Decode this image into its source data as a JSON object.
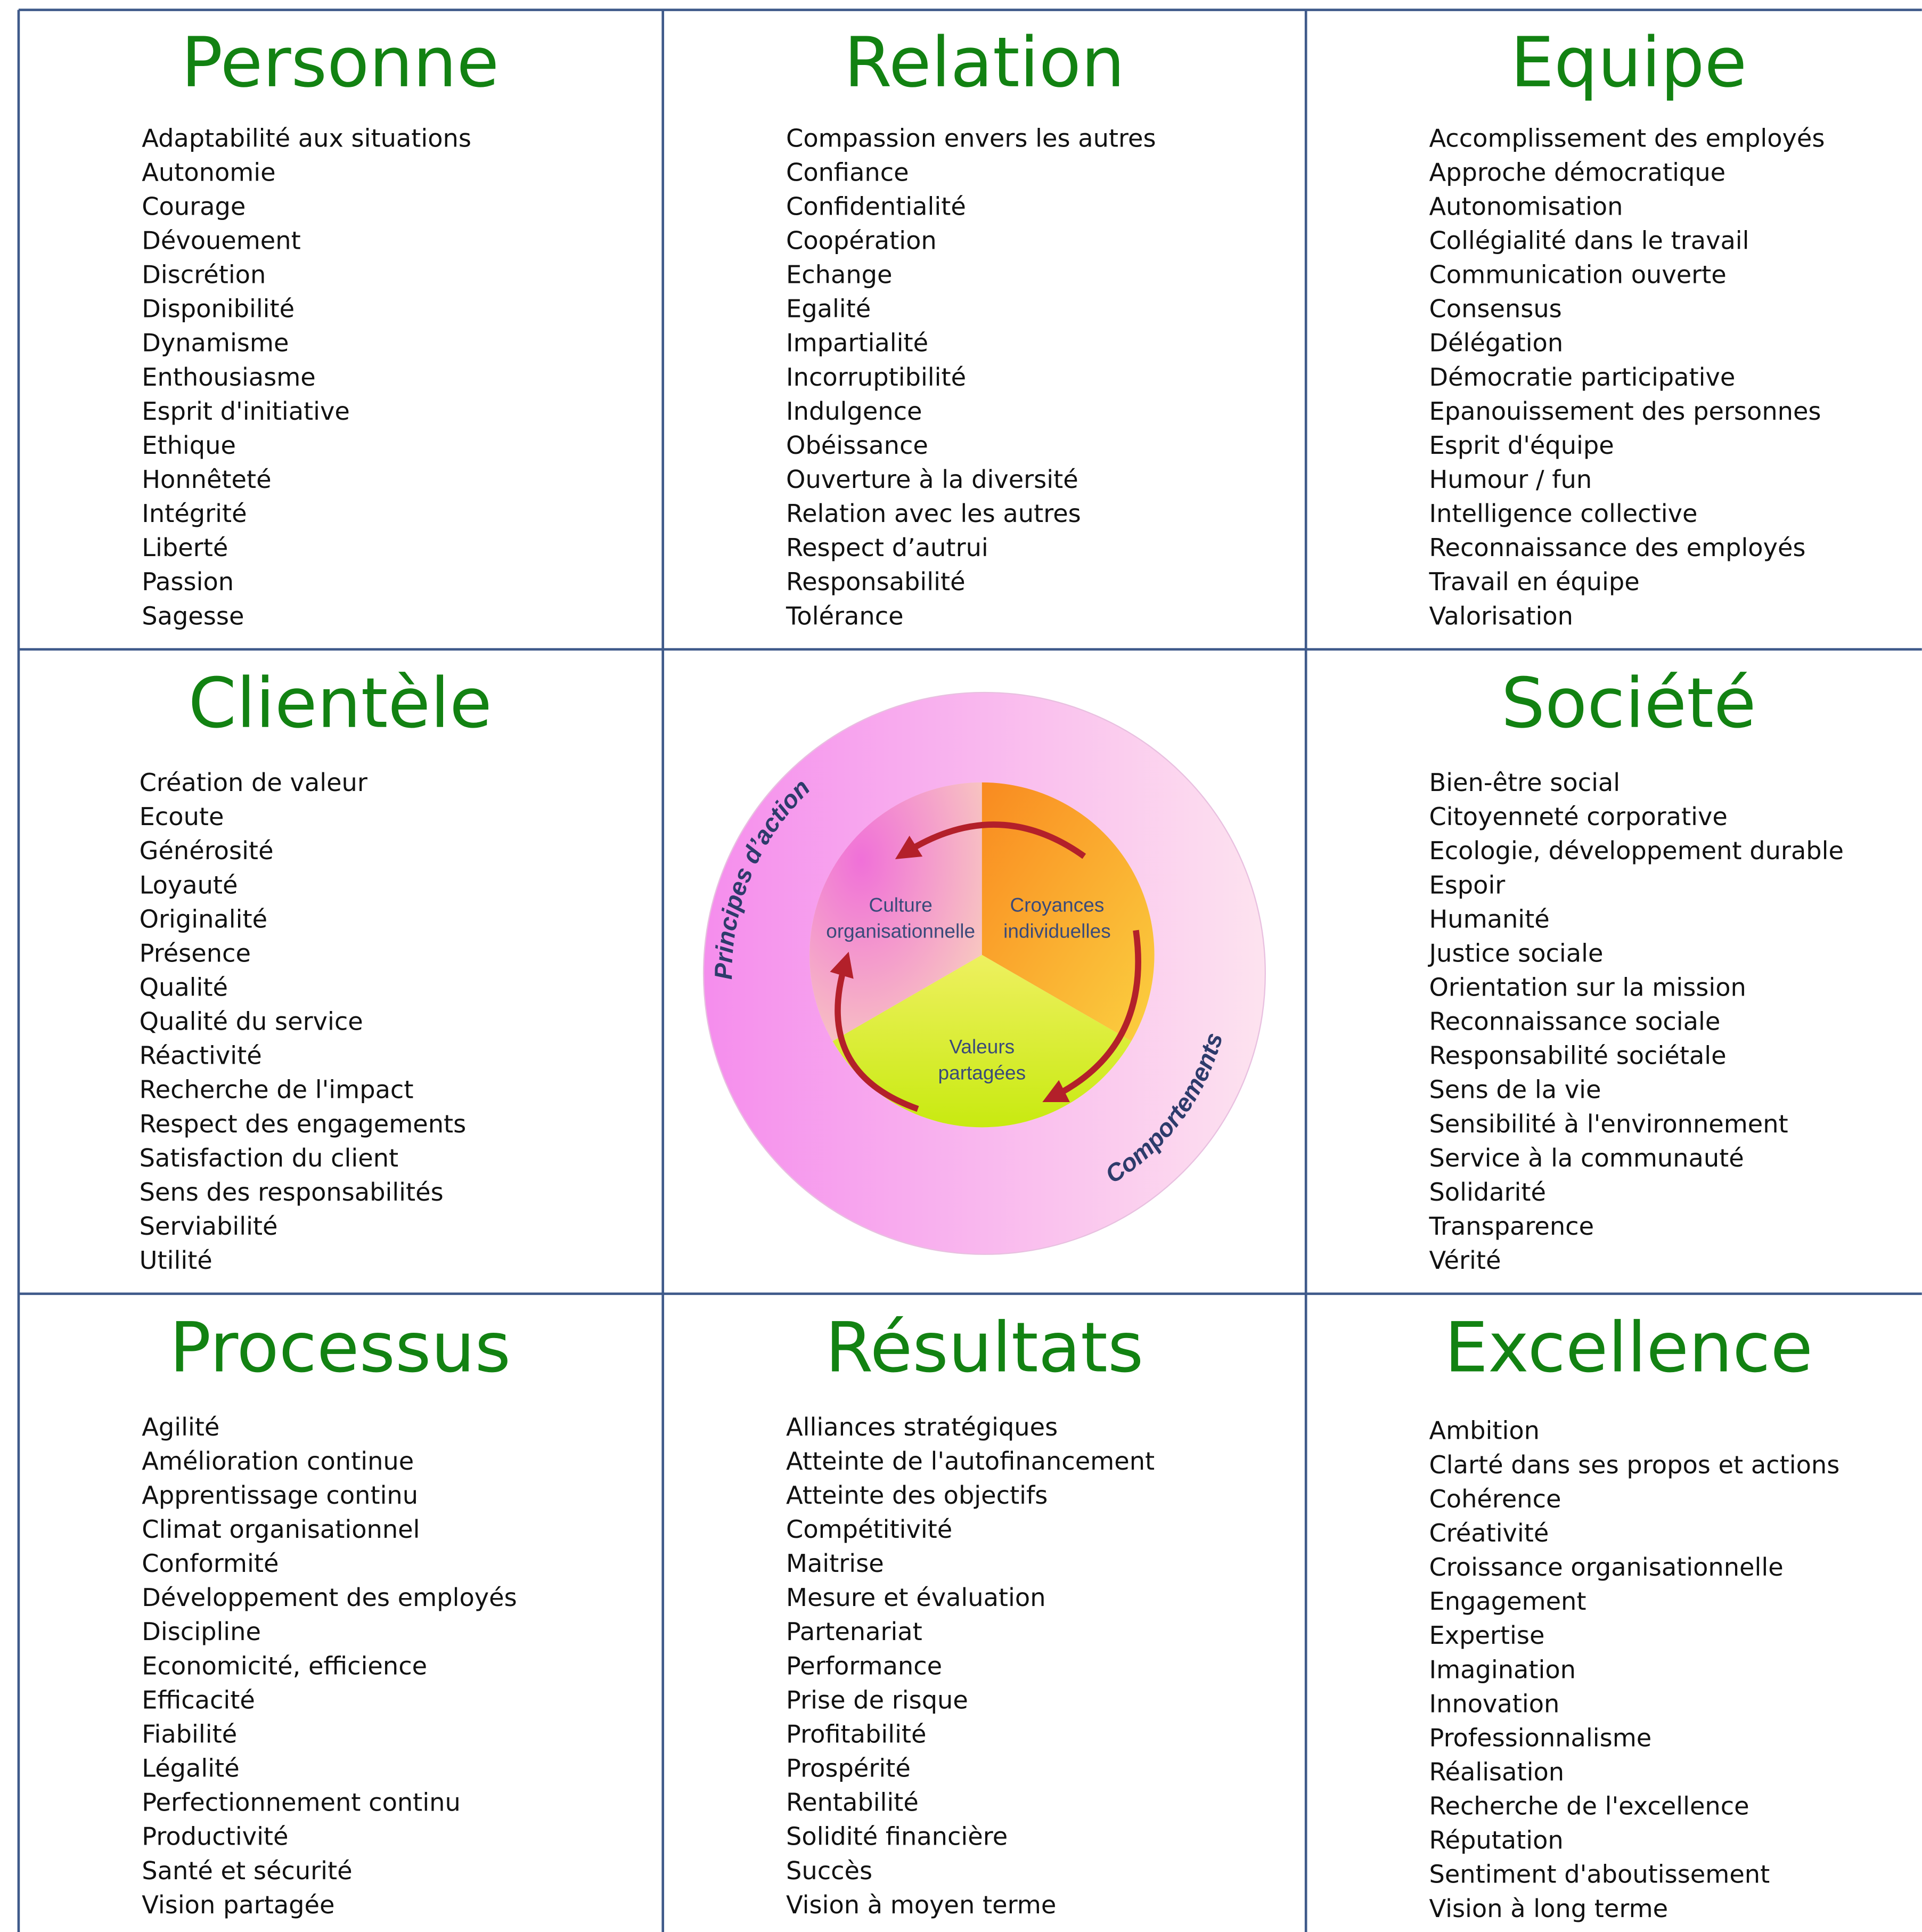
{
  "cells": [
    {
      "title": "Personne",
      "items": [
        "Adaptabilité aux situations",
        "Autonomie",
        "Courage",
        "Dévouement",
        "Discrétion",
        "Disponibilité",
        "Dynamisme",
        "Enthousiasme",
        "Esprit d'initiative",
        "Ethique",
        "Honnêteté",
        "Intégrité",
        "Liberté",
        "Passion",
        "Sagesse"
      ]
    },
    {
      "title": "Relation",
      "items": [
        "Compassion envers les autres",
        "Confiance",
        "Confidentialité",
        "Coopération",
        "Echange",
        "Egalité",
        "Impartialité",
        "Incorruptibilité",
        "Indulgence",
        "Obéissance",
        "Ouverture à la diversité",
        "Relation avec les autres",
        "Respect d’autrui",
        "Responsabilité",
        "Tolérance"
      ]
    },
    {
      "title": "Equipe",
      "items": [
        "Accomplissement des employés",
        "Approche démocratique",
        "Autonomisation",
        "Collégialité dans le travail",
        "Communication ouverte",
        "Consensus",
        "Délégation",
        "Démocratie participative",
        "Epanouissement des personnes",
        "Esprit d'équipe",
        "Humour / fun",
        "Intelligence collective",
        "Reconnaissance des employés",
        "Travail en équipe",
        "Valorisation"
      ]
    },
    {
      "title": "Clientèle",
      "items": [
        "Création de valeur",
        "Ecoute",
        "Générosité",
        "Loyauté",
        "Originalité",
        "Présence",
        "Qualité",
        "Qualité du service",
        "Réactivité",
        "Recherche de l'impact",
        "Respect des engagements",
        "Satisfaction du client",
        "Sens des responsabilités",
        "Serviabilité",
        "Utilité"
      ]
    },
    {
      "title": "Société",
      "items": [
        "Bien-être social",
        "Citoyenneté corporative",
        "Ecologie, développement durable",
        "Espoir",
        "Humanité",
        "Justice sociale",
        "Orientation sur la mission",
        "Reconnaissance sociale",
        "Responsabilité sociétale",
        "Sens de la vie",
        "Sensibilité à l'environnement",
        "Service à la communauté",
        "Solidarité",
        "Transparence",
        "Vérité"
      ]
    },
    {
      "title": "Processus",
      "items": [
        "Agilité",
        "Amélioration continue",
        "Apprentissage continu",
        "Climat organisationnel",
        "Conformité",
        "Développement des employés",
        "Discipline",
        "Economicité, efficience",
        "Efficacité",
        "Fiabilité",
        "Légalité",
        "Perfectionnement continu",
        "Productivité",
        "Santé et sécurité",
        "Vision partagée"
      ]
    },
    {
      "title": "Résultats",
      "items": [
        "Alliances stratégiques",
        "Atteinte de l'autofinancement",
        "Atteinte des objectifs",
        "Compétitivité",
        "Maitrise",
        "Mesure et évaluation",
        "Partenariat",
        "Performance",
        "Prise de risque",
        "Profitabilité",
        "Prospérité",
        "Rentabilité",
        "Solidité financière",
        "Succès",
        "Vision à moyen terme"
      ]
    },
    {
      "title": "Excellence",
      "items": [
        "Ambition",
        "Clarté dans ses propos et actions",
        "Cohérence",
        "Créativité",
        "Croissance organisationnelle",
        "Engagement",
        "Expertise",
        "Imagination",
        "Innovation",
        "Professionnalisme",
        "Réalisation",
        "Recherche de l'excellence",
        "Réputation",
        "Sentiment d'aboutissement",
        "Vision à long terme"
      ]
    }
  ],
  "diagram": {
    "outer_labels": [
      "Principes d’action",
      "Comportements"
    ],
    "segments": [
      [
        "Culture",
        "organisationnelle"
      ],
      [
        "Croyances",
        "individuelles"
      ],
      [
        "Valeurs",
        "partagées"
      ]
    ]
  }
}
